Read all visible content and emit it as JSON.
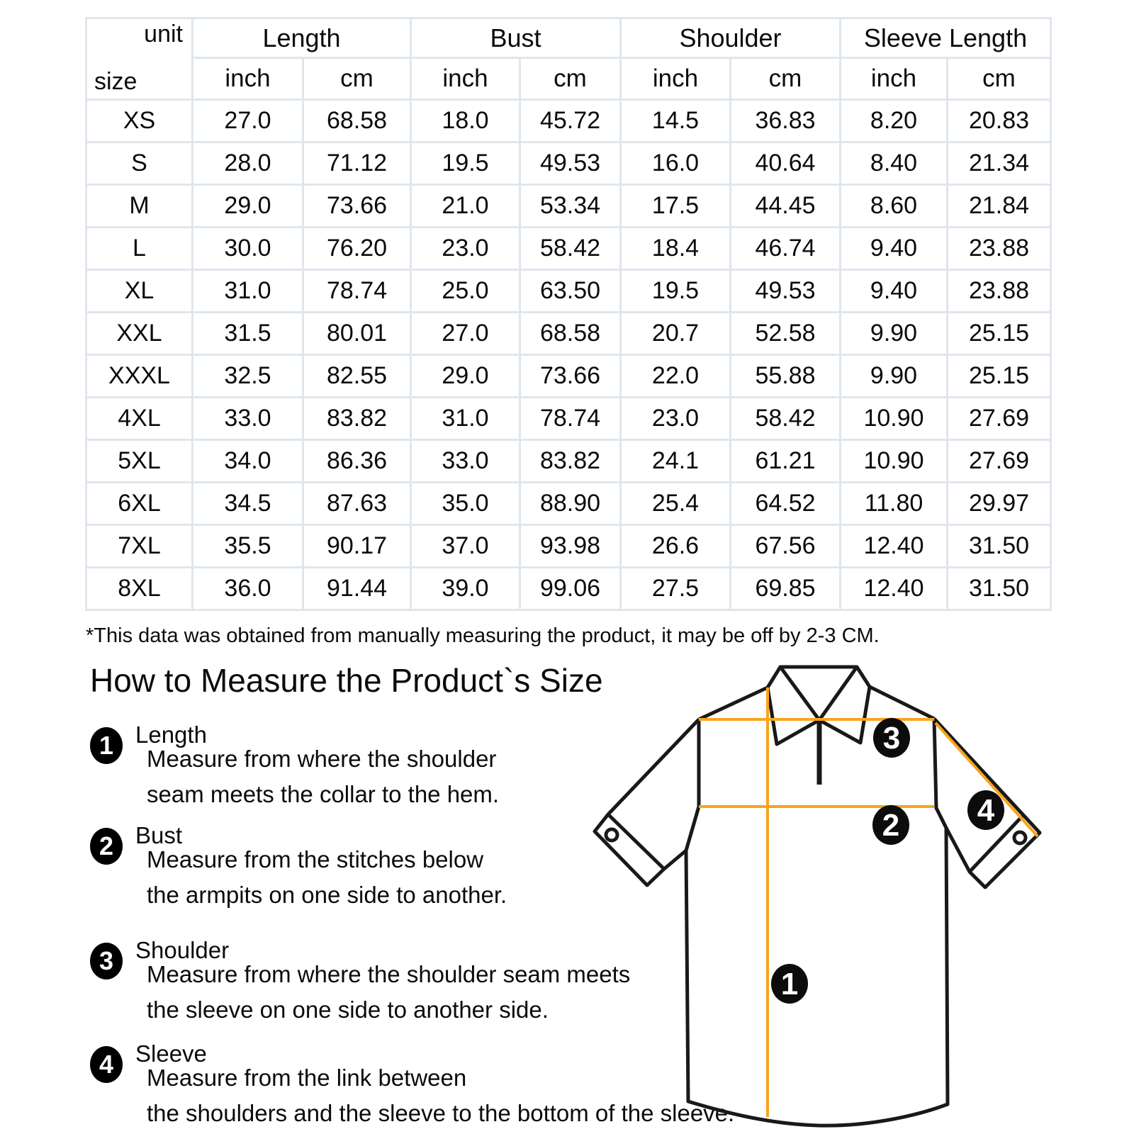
{
  "table": {
    "corner": {
      "top": "unit",
      "bottom": "size"
    },
    "groups": [
      {
        "label": "Length"
      },
      {
        "label": "Bust"
      },
      {
        "label": "Shoulder"
      },
      {
        "label": "Sleeve Length"
      }
    ],
    "unit_headers": [
      "inch",
      "cm",
      "inch",
      "cm",
      "inch",
      "cm",
      "inch",
      "cm"
    ],
    "rows": [
      {
        "size": "XS",
        "cells": [
          "27.0",
          "68.58",
          "18.0",
          "45.72",
          "14.5",
          "36.83",
          "8.20",
          "20.83"
        ]
      },
      {
        "size": "S",
        "cells": [
          "28.0",
          "71.12",
          "19.5",
          "49.53",
          "16.0",
          "40.64",
          "8.40",
          "21.34"
        ]
      },
      {
        "size": "M",
        "cells": [
          "29.0",
          "73.66",
          "21.0",
          "53.34",
          "17.5",
          "44.45",
          "8.60",
          "21.84"
        ]
      },
      {
        "size": "L",
        "cells": [
          "30.0",
          "76.20",
          "23.0",
          "58.42",
          "18.4",
          "46.74",
          "9.40",
          "23.88"
        ]
      },
      {
        "size": "XL",
        "cells": [
          "31.0",
          "78.74",
          "25.0",
          "63.50",
          "19.5",
          "49.53",
          "9.40",
          "23.88"
        ]
      },
      {
        "size": "XXL",
        "cells": [
          "31.5",
          "80.01",
          "27.0",
          "68.58",
          "20.7",
          "52.58",
          "9.90",
          "25.15"
        ]
      },
      {
        "size": "XXXL",
        "cells": [
          "32.5",
          "82.55",
          "29.0",
          "73.66",
          "22.0",
          "55.88",
          "9.90",
          "25.15"
        ]
      },
      {
        "size": "4XL",
        "cells": [
          "33.0",
          "83.82",
          "31.0",
          "78.74",
          "23.0",
          "58.42",
          "10.90",
          "27.69"
        ]
      },
      {
        "size": "5XL",
        "cells": [
          "34.0",
          "86.36",
          "33.0",
          "83.82",
          "24.1",
          "61.21",
          "10.90",
          "27.69"
        ]
      },
      {
        "size": "6XL",
        "cells": [
          "34.5",
          "87.63",
          "35.0",
          "88.90",
          "25.4",
          "64.52",
          "11.80",
          "29.97"
        ]
      },
      {
        "size": "7XL",
        "cells": [
          "35.5",
          "90.17",
          "37.0",
          "93.98",
          "26.6",
          "67.56",
          "12.40",
          "31.50"
        ]
      },
      {
        "size": "8XL",
        "cells": [
          "36.0",
          "91.44",
          "39.0",
          "99.06",
          "27.5",
          "69.85",
          "12.40",
          "31.50"
        ]
      }
    ]
  },
  "footnote": "*This data was obtained from manually measuring the product, it may be off by 2-3 CM.",
  "guide": {
    "heading": "How to Measure the Product`s Size",
    "items": [
      {
        "num": "1",
        "label": "Length",
        "line1": "Measure from where the shoulder",
        "line2": "seam meets the collar to the hem."
      },
      {
        "num": "2",
        "label": "Bust",
        "line1": "Measure from the stitches below",
        "line2": "the armpits on one side to another."
      },
      {
        "num": "3",
        "label": "Shoulder",
        "line1": "Measure from where the shoulder seam meets",
        "line2": "the sleeve on one side to another side."
      },
      {
        "num": "4",
        "label": "Sleeve",
        "line1": "Measure from the link between",
        "line2": "the shoulders and the sleeve to the bottom of the sleeve."
      }
    ]
  },
  "diagram": {
    "badges": [
      "1",
      "2",
      "3",
      "4"
    ]
  },
  "colors": {
    "accent_orange": "#F9A41C",
    "outline": "#191919",
    "table_border": "#e0e6ed"
  }
}
